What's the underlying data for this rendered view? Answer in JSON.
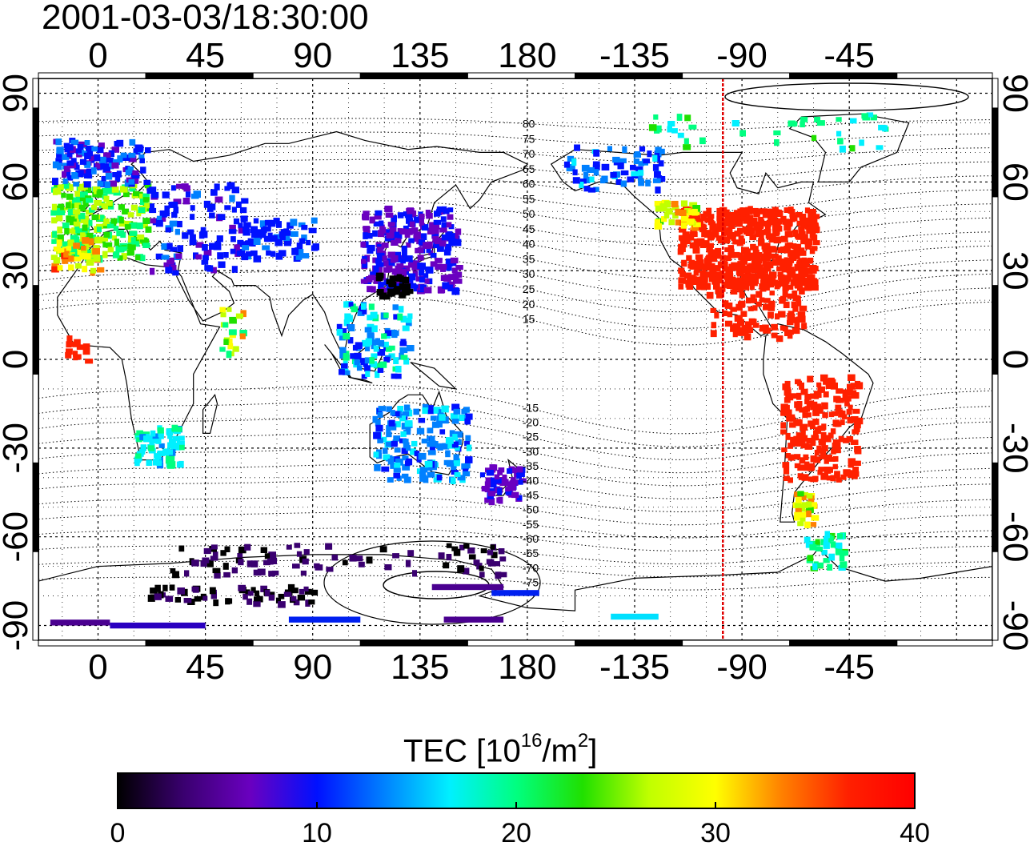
{
  "header": {
    "timestamp": "2001-03-03/18:30:00"
  },
  "map": {
    "type": "global TEC map (equirectangular)",
    "lon_range_deg": [
      -25,
      375
    ],
    "lat_range_deg": [
      -95,
      95
    ],
    "top_lon_ticks": [
      "0",
      "45",
      "90",
      "135",
      "180",
      "-135",
      "-90",
      "-45"
    ],
    "bottom_lon_ticks": [
      "0",
      "45",
      "90",
      "135",
      "180",
      "-135",
      "-90",
      "-45"
    ],
    "left_lat_ticks": [
      "90",
      "60",
      "30",
      "0",
      "-30",
      "-60",
      "-90"
    ],
    "right_lat_ticks": [
      "90",
      "60",
      "30",
      "0",
      "-30",
      "-60",
      "-90"
    ],
    "tick_values_lon": [
      0,
      45,
      90,
      135,
      180,
      225,
      270,
      315
    ],
    "tick_values_lat": [
      90,
      60,
      30,
      0,
      -30,
      -60,
      -90
    ],
    "terminator_line": {
      "lon_deg": 262,
      "color": "#e00000"
    },
    "contour_labels": [
      "80",
      "75",
      "70",
      "65",
      "60",
      "55",
      "50",
      "45",
      "40",
      "35",
      "30",
      "25",
      "20",
      "15",
      "-15",
      "-20",
      "-25",
      "-30",
      "-35",
      "-40",
      "-45",
      "-50",
      "-55",
      "-60",
      "-65",
      "-70",
      "-75"
    ],
    "contour_lats": [
      80,
      75,
      70,
      65,
      60,
      55,
      50,
      45,
      40,
      35,
      30,
      25,
      20,
      15,
      -15,
      -20,
      -25,
      -30,
      -35,
      -40,
      -45,
      -50,
      -55,
      -60,
      -65,
      -70,
      -75
    ],
    "tec_regions": [
      {
        "name": "north-america",
        "color": "#ff1a00"
      },
      {
        "name": "south-america",
        "color": "#ff1a00"
      },
      {
        "name": "europe",
        "color": "#7fd830"
      },
      {
        "name": "east-asia",
        "color": "#1030f0"
      },
      {
        "name": "australia",
        "color": "#30c0f0"
      },
      {
        "name": "antarctica",
        "color": "#4a0090"
      }
    ]
  },
  "colorbar": {
    "title_prefix": "TEC  [10",
    "title_exp1": "16",
    "title_mid": "/m",
    "title_exp2": "2",
    "title_suffix": "]",
    "range": [
      0,
      40
    ],
    "ticks": [
      "0",
      "10",
      "20",
      "30",
      "40"
    ],
    "tick_values": [
      0,
      10,
      20,
      30,
      40
    ],
    "colors": [
      "#000000",
      "#3a0070",
      "#6a00c0",
      "#0010ff",
      "#0080ff",
      "#00f0ff",
      "#00ff80",
      "#20e000",
      "#c0ff00",
      "#ffff00",
      "#ff8000",
      "#ff2000",
      "#ff0000"
    ]
  }
}
